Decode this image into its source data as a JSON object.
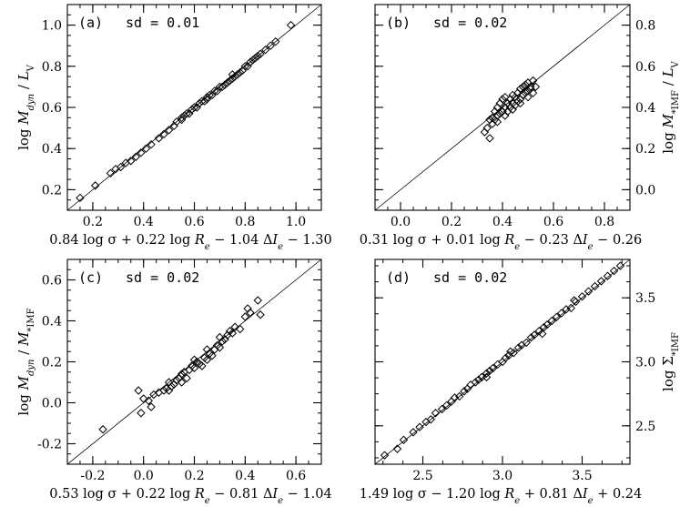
{
  "chart_data": [
    {
      "type": "scatter",
      "panel_label": "(a)",
      "sd_text": "sd = 0.01",
      "xlabel": "0.84 log σ + 0.22 log R_e − 1.04 ΔI_e − 1.30",
      "ylabel": "log M_dyn / L_V",
      "y_axis_side": "left",
      "xlim": [
        0.1,
        1.1
      ],
      "ylim": [
        0.1,
        1.1
      ],
      "xticks": [
        "0.2",
        "0.4",
        "0.6",
        "0.8",
        "1.0"
      ],
      "yticks": [
        "0.2",
        "0.4",
        "0.6",
        "0.8",
        "1.0"
      ],
      "identity_line": true,
      "points": [
        [
          0.15,
          0.16
        ],
        [
          0.21,
          0.22
        ],
        [
          0.27,
          0.28
        ],
        [
          0.29,
          0.3
        ],
        [
          0.31,
          0.31
        ],
        [
          0.33,
          0.33
        ],
        [
          0.35,
          0.34
        ],
        [
          0.37,
          0.36
        ],
        [
          0.39,
          0.38
        ],
        [
          0.41,
          0.4
        ],
        [
          0.43,
          0.42
        ],
        [
          0.46,
          0.45
        ],
        [
          0.48,
          0.47
        ],
        [
          0.5,
          0.49
        ],
        [
          0.52,
          0.51
        ],
        [
          0.53,
          0.53
        ],
        [
          0.55,
          0.54
        ],
        [
          0.56,
          0.56
        ],
        [
          0.57,
          0.57
        ],
        [
          0.58,
          0.57
        ],
        [
          0.59,
          0.59
        ],
        [
          0.6,
          0.6
        ],
        [
          0.61,
          0.6
        ],
        [
          0.62,
          0.62
        ],
        [
          0.63,
          0.63
        ],
        [
          0.64,
          0.63
        ],
        [
          0.65,
          0.64
        ],
        [
          0.66,
          0.66
        ],
        [
          0.67,
          0.66
        ],
        [
          0.68,
          0.68
        ],
        [
          0.69,
          0.68
        ],
        [
          0.7,
          0.7
        ],
        [
          0.71,
          0.7
        ],
        [
          0.72,
          0.71
        ],
        [
          0.73,
          0.72
        ],
        [
          0.74,
          0.73
        ],
        [
          0.75,
          0.74
        ],
        [
          0.76,
          0.75
        ],
        [
          0.77,
          0.76
        ],
        [
          0.78,
          0.77
        ],
        [
          0.79,
          0.78
        ],
        [
          0.8,
          0.8
        ],
        [
          0.81,
          0.8
        ],
        [
          0.82,
          0.82
        ],
        [
          0.83,
          0.83
        ],
        [
          0.84,
          0.84
        ],
        [
          0.86,
          0.86
        ],
        [
          0.88,
          0.88
        ],
        [
          0.9,
          0.9
        ],
        [
          0.92,
          0.92
        ],
        [
          0.98,
          1.0
        ],
        [
          0.55,
          0.55
        ],
        [
          0.65,
          0.65
        ],
        [
          0.75,
          0.76
        ],
        [
          0.85,
          0.85
        ]
      ]
    },
    {
      "type": "scatter",
      "panel_label": "(b)",
      "sd_text": "sd = 0.02",
      "xlabel": "0.31 log σ + 0.01 log R_e − 0.23 ΔI_e − 0.26",
      "ylabel": "log M_*IMF / L_V",
      "y_axis_side": "right",
      "xlim": [
        -0.1,
        0.9
      ],
      "ylim": [
        -0.1,
        0.9
      ],
      "xticks": [
        "0.0",
        "0.2",
        "0.4",
        "0.6",
        "0.8"
      ],
      "yticks": [
        "0.0",
        "0.2",
        "0.4",
        "0.6",
        "0.8"
      ],
      "identity_line": true,
      "points": [
        [
          0.33,
          0.28
        ],
        [
          0.34,
          0.3
        ],
        [
          0.35,
          0.25
        ],
        [
          0.36,
          0.32
        ],
        [
          0.36,
          0.35
        ],
        [
          0.37,
          0.34
        ],
        [
          0.37,
          0.38
        ],
        [
          0.38,
          0.36
        ],
        [
          0.38,
          0.4
        ],
        [
          0.39,
          0.37
        ],
        [
          0.39,
          0.42
        ],
        [
          0.4,
          0.38
        ],
        [
          0.4,
          0.44
        ],
        [
          0.41,
          0.4
        ],
        [
          0.41,
          0.36
        ],
        [
          0.42,
          0.42
        ],
        [
          0.42,
          0.38
        ],
        [
          0.43,
          0.44
        ],
        [
          0.43,
          0.4
        ],
        [
          0.44,
          0.42
        ],
        [
          0.44,
          0.46
        ],
        [
          0.45,
          0.41
        ],
        [
          0.45,
          0.45
        ],
        [
          0.46,
          0.43
        ],
        [
          0.46,
          0.47
        ],
        [
          0.47,
          0.44
        ],
        [
          0.47,
          0.49
        ],
        [
          0.48,
          0.46
        ],
        [
          0.48,
          0.5
        ],
        [
          0.49,
          0.47
        ],
        [
          0.49,
          0.51
        ],
        [
          0.5,
          0.48
        ],
        [
          0.5,
          0.52
        ],
        [
          0.51,
          0.49
        ],
        [
          0.51,
          0.5
        ],
        [
          0.52,
          0.53
        ],
        [
          0.52,
          0.47
        ],
        [
          0.35,
          0.34
        ],
        [
          0.38,
          0.33
        ],
        [
          0.41,
          0.45
        ],
        [
          0.44,
          0.39
        ],
        [
          0.47,
          0.42
        ],
        [
          0.5,
          0.45
        ],
        [
          0.53,
          0.5
        ]
      ]
    },
    {
      "type": "scatter",
      "panel_label": "(c)",
      "sd_text": "sd = 0.02",
      "xlabel": "0.53 log σ + 0.22 log R_e − 0.81 ΔI_e − 1.04",
      "ylabel": "log M_dyn / M_*IMF",
      "y_axis_side": "left",
      "xlim": [
        -0.3,
        0.7
      ],
      "ylim": [
        -0.3,
        0.7
      ],
      "xticks": [
        "-0.2",
        "0.0",
        "0.2",
        "0.4",
        "0.6"
      ],
      "yticks": [
        "-0.2",
        "0.0",
        "0.2",
        "0.4",
        "0.6"
      ],
      "identity_line": true,
      "points": [
        [
          -0.16,
          -0.13
        ],
        [
          -0.02,
          0.06
        ],
        [
          -0.01,
          -0.05
        ],
        [
          0.0,
          0.02
        ],
        [
          0.02,
          0.01
        ],
        [
          0.03,
          -0.02
        ],
        [
          0.04,
          0.04
        ],
        [
          0.06,
          0.05
        ],
        [
          0.08,
          0.06
        ],
        [
          0.09,
          0.07
        ],
        [
          0.1,
          0.06
        ],
        [
          0.11,
          0.08
        ],
        [
          0.12,
          0.09
        ],
        [
          0.13,
          0.11
        ],
        [
          0.14,
          0.12
        ],
        [
          0.15,
          0.1
        ],
        [
          0.15,
          0.14
        ],
        [
          0.16,
          0.15
        ],
        [
          0.17,
          0.12
        ],
        [
          0.18,
          0.16
        ],
        [
          0.19,
          0.18
        ],
        [
          0.2,
          0.17
        ],
        [
          0.21,
          0.2
        ],
        [
          0.22,
          0.19
        ],
        [
          0.23,
          0.18
        ],
        [
          0.24,
          0.22
        ],
        [
          0.25,
          0.21
        ],
        [
          0.26,
          0.24
        ],
        [
          0.27,
          0.23
        ],
        [
          0.28,
          0.26
        ],
        [
          0.29,
          0.28
        ],
        [
          0.3,
          0.27
        ],
        [
          0.31,
          0.3
        ],
        [
          0.32,
          0.31
        ],
        [
          0.33,
          0.33
        ],
        [
          0.34,
          0.35
        ],
        [
          0.35,
          0.34
        ],
        [
          0.36,
          0.37
        ],
        [
          0.38,
          0.36
        ],
        [
          0.4,
          0.42
        ],
        [
          0.41,
          0.46
        ],
        [
          0.42,
          0.44
        ],
        [
          0.45,
          0.5
        ],
        [
          0.46,
          0.43
        ],
        [
          0.1,
          0.1
        ],
        [
          0.2,
          0.21
        ],
        [
          0.25,
          0.26
        ],
        [
          0.3,
          0.32
        ]
      ]
    },
    {
      "type": "scatter",
      "panel_label": "(d)",
      "sd_text": "sd = 0.02",
      "xlabel": "1.49 log σ − 1.20 log R_e + 0.81 ΔI_e + 0.24",
      "ylabel": "log Σ_*IMF",
      "y_axis_side": "right",
      "xlim": [
        2.2,
        3.8
      ],
      "ylim": [
        2.2,
        3.8
      ],
      "xticks": [
        "2.5",
        "3.0",
        "3.5"
      ],
      "yticks": [
        "2.5",
        "3.0",
        "3.5"
      ],
      "identity_line": true,
      "points": [
        [
          2.26,
          2.27
        ],
        [
          2.34,
          2.32
        ],
        [
          2.38,
          2.39
        ],
        [
          2.44,
          2.45
        ],
        [
          2.48,
          2.49
        ],
        [
          2.52,
          2.53
        ],
        [
          2.55,
          2.55
        ],
        [
          2.58,
          2.6
        ],
        [
          2.62,
          2.63
        ],
        [
          2.65,
          2.66
        ],
        [
          2.68,
          2.69
        ],
        [
          2.7,
          2.72
        ],
        [
          2.73,
          2.73
        ],
        [
          2.76,
          2.77
        ],
        [
          2.78,
          2.79
        ],
        [
          2.8,
          2.82
        ],
        [
          2.83,
          2.84
        ],
        [
          2.85,
          2.86
        ],
        [
          2.87,
          2.88
        ],
        [
          2.9,
          2.91
        ],
        [
          2.92,
          2.93
        ],
        [
          2.94,
          2.95
        ],
        [
          2.97,
          2.98
        ],
        [
          3.0,
          3.0
        ],
        [
          3.02,
          3.03
        ],
        [
          3.04,
          3.05
        ],
        [
          3.07,
          3.07
        ],
        [
          3.1,
          3.11
        ],
        [
          3.12,
          3.13
        ],
        [
          3.15,
          3.15
        ],
        [
          3.18,
          3.19
        ],
        [
          3.2,
          3.21
        ],
        [
          3.23,
          3.24
        ],
        [
          3.26,
          3.27
        ],
        [
          3.28,
          3.29
        ],
        [
          3.31,
          3.32
        ],
        [
          3.34,
          3.35
        ],
        [
          3.37,
          3.38
        ],
        [
          3.4,
          3.41
        ],
        [
          3.43,
          3.42
        ],
        [
          3.46,
          3.47
        ],
        [
          3.5,
          3.51
        ],
        [
          3.54,
          3.55
        ],
        [
          3.58,
          3.59
        ],
        [
          3.62,
          3.63
        ],
        [
          3.66,
          3.67
        ],
        [
          3.7,
          3.71
        ],
        [
          3.74,
          3.75
        ],
        [
          2.9,
          2.88
        ],
        [
          3.05,
          3.08
        ],
        [
          3.25,
          3.22
        ],
        [
          3.45,
          3.48
        ]
      ]
    }
  ]
}
